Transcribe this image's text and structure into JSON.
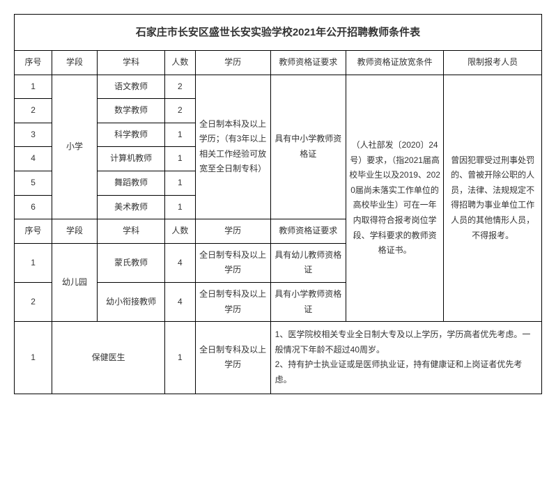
{
  "title": "石家庄市长安区盛世长安实验学校2021年公开招聘教师条件表",
  "headers1": {
    "seq": "序号",
    "stage": "学段",
    "subject": "学科",
    "count": "人数",
    "edu": "学历",
    "cert": "教师资格证要求",
    "relax": "教师资格证放宽条件",
    "restrict": "限制报考人员"
  },
  "primary": {
    "stage": "小学",
    "edu": "全日制本科及以上学历；（有3年以上相关工作经验可放宽至全日制专科）",
    "cert": "具有中小学教师资格证",
    "rows": [
      {
        "seq": "1",
        "subject": "语文教师",
        "count": "2"
      },
      {
        "seq": "2",
        "subject": "数学教师",
        "count": "2"
      },
      {
        "seq": "3",
        "subject": "科学教师",
        "count": "1"
      },
      {
        "seq": "4",
        "subject": "计算机教师",
        "count": "1"
      },
      {
        "seq": "5",
        "subject": "舞蹈教师",
        "count": "1"
      },
      {
        "seq": "6",
        "subject": "美术教师",
        "count": "1"
      }
    ]
  },
  "headers2": {
    "seq": "序号",
    "stage": "学段",
    "subject": "学科",
    "count": "人数",
    "edu": "学历",
    "cert": "教师资格证要求"
  },
  "kinder": {
    "stage": "幼儿园",
    "rows": [
      {
        "seq": "1",
        "subject": "蒙氏教师",
        "count": "4",
        "edu": "全日制专科及以上学历",
        "cert": "具有幼儿教师资格证"
      },
      {
        "seq": "2",
        "subject": "幼小衔接教师",
        "count": "4",
        "edu": "全日制专科及以上学历",
        "cert": "具有小学教师资格证"
      }
    ]
  },
  "relax_text": "（人社部发〔2020〕24号）要求，（指2021届高校毕业生以及2019、2020届尚未落实工作单位的高校毕业生）可在一年内取得符合报考岗位学段、学科要求的教师资格证书。",
  "restrict_text": "曾因犯罪受过刑事处罚的、曾被开除公职的人员，法律、法规规定不得招聘为事业单位工作人员的其他情形人员，不得报考。",
  "doctor": {
    "seq": "1",
    "subject": "保健医生",
    "count": "1",
    "edu": "全日制专科及以上学历",
    "note": "1、医学院校相关专业全日制大专及以上学历，学历高者优先考虑。一般情况下年龄不超过40周岁。\n2、持有护士执业证或是医师执业证，持有健康证和上岗证者优先考虑。"
  },
  "colors": {
    "border": "#000000",
    "text": "#333333",
    "bg": "#ffffff"
  }
}
